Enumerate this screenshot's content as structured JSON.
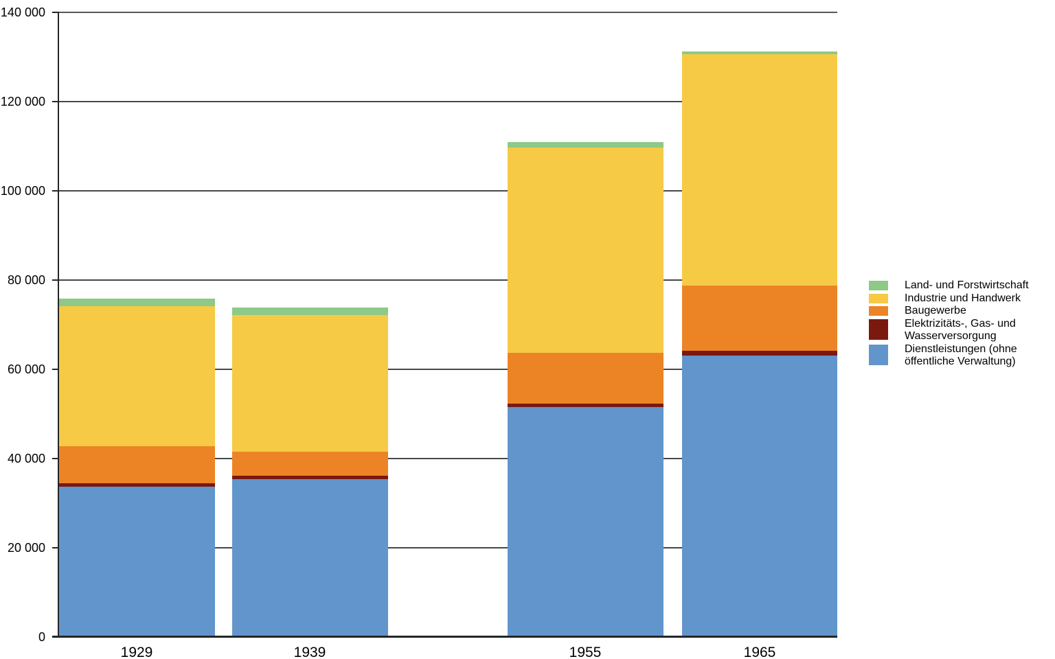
{
  "colors": {
    "land_forst": "#8DC987",
    "industrie": "#F6CA45",
    "baugewerbe": "#EC8426",
    "energie": "#7A190F",
    "dienstleistungen": "#6295CC",
    "gridline": "#474749",
    "axis": "#232527",
    "text": "#000000",
    "background": "#FFFFFF"
  },
  "chart_data": {
    "type": "bar",
    "stacked": true,
    "title": "",
    "xlabel": "",
    "ylabel": "",
    "categories": [
      "1929",
      "1939",
      "1955",
      "1965"
    ],
    "category_years": [
      1929,
      1939,
      1955,
      1965
    ],
    "xaxis_type": "time-proportional",
    "series": [
      {
        "id": "dienstleistungen",
        "name": "Dienstleistungen (ohne öffentliche Verwaltung)",
        "values": [
          33700,
          35350,
          51550,
          63100
        ]
      },
      {
        "id": "energie",
        "name": "Elektrizitäts-, Gas- und Wasserversorgung",
        "values": [
          700,
          850,
          810,
          1000
        ]
      },
      {
        "id": "baugewerbe",
        "name": "Baugewerbe",
        "values": [
          8400,
          5370,
          11350,
          14650
        ]
      },
      {
        "id": "industrie",
        "name": "Industrie und Handwerk",
        "values": [
          31350,
          30600,
          45950,
          51850
        ]
      },
      {
        "id": "land_forst",
        "name": "Land- und Forstwirtschaft",
        "values": [
          1750,
          1630,
          1240,
          600
        ]
      }
    ],
    "stack_order": "bottom-to-top",
    "totals": [
      75900,
      73800,
      110900,
      131200
    ],
    "ylim": [
      0,
      140000
    ],
    "ytick_step": 20000,
    "ytick_labels": [
      "0",
      "20 000",
      "40 000",
      "60 000",
      "80 000",
      "100 000",
      "120 000",
      "140 000"
    ],
    "grid": true,
    "legend_position": "right",
    "legend": [
      {
        "id": "land_forst",
        "lines": [
          "Land- und Forstwirtschaft"
        ]
      },
      {
        "id": "industrie",
        "lines": [
          "Industrie und Handwerk"
        ]
      },
      {
        "id": "baugewerbe",
        "lines": [
          "Baugewerbe"
        ]
      },
      {
        "id": "energie",
        "lines": [
          "Elektrizitäts-, Gas- und",
          "Wasserversorgung"
        ]
      },
      {
        "id": "dienstleistungen",
        "lines": [
          "Dienstleistungen (ohne",
          "öffentliche Verwaltung)"
        ]
      }
    ]
  }
}
